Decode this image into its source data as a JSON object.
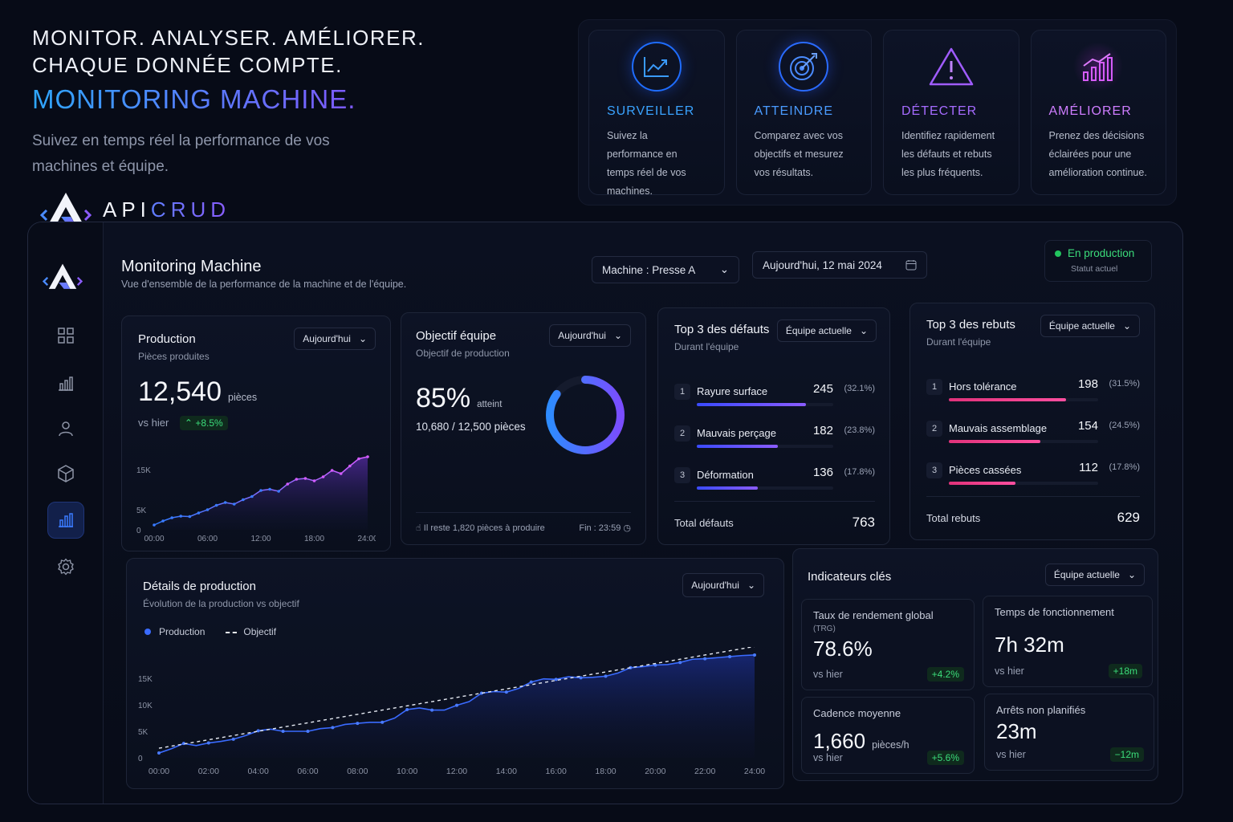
{
  "hero": {
    "line1": "MONITOR. ANALYSER. AMÉLIORER.",
    "line2": "CHAQUE DONNÉE COMPTE.",
    "accent": "MONITORING MACHINE.",
    "subtitle": "Suivez en temps réel la performance de vos machines et équipe.",
    "brand_a": "APICRUD",
    "brand_prefix": "API",
    "brand_suffix": "CRUD"
  },
  "features": [
    {
      "title": "SURVEILLER",
      "desc": "Suivez la performance en temps réel de vos machines.",
      "icon": "trend-chart-icon",
      "color": "#2e8bff"
    },
    {
      "title": "ATTEINDRE",
      "desc": "Comparez avec vos objectifs et mesurez vos résultats.",
      "icon": "target-icon",
      "color": "#3a7bff"
    },
    {
      "title": "DÉTECTER",
      "desc": "Identifiez rapidement les défauts et rebuts les plus fréquents.",
      "icon": "warning-icon",
      "color": "#9b5cff"
    },
    {
      "title": "AMÉLIORER",
      "desc": "Prenez des décisions éclairées pour une amélioration continue.",
      "icon": "growth-chart-icon",
      "color": "#c44dff"
    }
  ],
  "dashboard": {
    "title": "Monitoring Machine",
    "subtitle": "Vue d'ensemble de la performance de la machine et de l'équipe.",
    "machine_select": "Machine : Presse A",
    "date_select": "Aujourd'hui, 12 mai 2024",
    "status": {
      "label": "En production",
      "sub": "Statut actuel"
    },
    "sidebar_icons": [
      "grid-icon",
      "bar-chart-icon",
      "user-icon",
      "cube-icon",
      "analytics-icon",
      "settings-icon"
    ]
  },
  "production": {
    "title": "Production",
    "subtitle": "Pièces produites",
    "period": "Aujourd'hui",
    "value": "12,540",
    "unit": "pièces",
    "compare_label": "vs hier",
    "delta": "+8.5%"
  },
  "objective": {
    "title": "Objectif équipe",
    "subtitle": "Objectif de production",
    "period": "Aujourd'hui",
    "value": "85%",
    "value_label": "atteint",
    "detail": "10,680 / 12,500 pièces",
    "progress": 0.85,
    "remaining": "Il reste 1,820 pièces à produire",
    "end": "Fin : 23:59"
  },
  "defects": {
    "title": "Top 3 des défauts",
    "subtitle": "Durant l'équipe",
    "filter": "Équipe actuelle",
    "items": [
      {
        "rank": "1",
        "label": "Rayure surface",
        "value": "245",
        "pct": "(32.1%)",
        "share": 0.321
      },
      {
        "rank": "2",
        "label": "Mauvais perçage",
        "value": "182",
        "pct": "(23.8%)",
        "share": 0.238
      },
      {
        "rank": "3",
        "label": "Déformation",
        "value": "136",
        "pct": "(17.8%)",
        "share": 0.178
      }
    ],
    "total_label": "Total défauts",
    "total": "763"
  },
  "scrap": {
    "title": "Top 3 des rebuts",
    "subtitle": "Durant l'équipe",
    "filter": "Équipe actuelle",
    "items": [
      {
        "rank": "1",
        "label": "Hors tolérance",
        "value": "198",
        "pct": "(31.5%)",
        "share": 0.315
      },
      {
        "rank": "2",
        "label": "Mauvais assemblage",
        "value": "154",
        "pct": "(24.5%)",
        "share": 0.245
      },
      {
        "rank": "3",
        "label": "Pièces cassées",
        "value": "112",
        "pct": "(17.8%)",
        "share": 0.178
      }
    ],
    "total_label": "Total rebuts",
    "total": "629"
  },
  "details": {
    "title": "Détails de production",
    "subtitle": "Évolution de la production vs objectif",
    "period": "Aujourd'hui",
    "legend_production": "Production",
    "legend_objective": "Objectif"
  },
  "kpis": {
    "title": "Indicateurs clés",
    "filter": "Équipe actuelle",
    "items": [
      {
        "label": "Taux de rendement global",
        "label2": "(TRG)",
        "value": "78.6%",
        "unit": "",
        "compare": "vs hier",
        "delta": "+4.2%"
      },
      {
        "label": "Temps de fonctionnement",
        "label2": "",
        "value": "7h 32m",
        "unit": "",
        "compare": "vs hier",
        "delta": "+18m"
      },
      {
        "label": "Cadence moyenne",
        "label2": "",
        "value": "1,660",
        "unit": "pièces/h",
        "compare": "vs hier",
        "delta": "+5.6%"
      },
      {
        "label": "Arrêts non planifiés",
        "label2": "",
        "value": "23m",
        "unit": "",
        "compare": "vs hier",
        "delta": "−12m"
      }
    ]
  },
  "chart_data": [
    {
      "type": "area",
      "title": "Production",
      "x": [
        "00:00",
        "01:00",
        "02:00",
        "03:00",
        "04:00",
        "05:00",
        "06:00",
        "07:00",
        "08:00",
        "09:00",
        "10:00",
        "11:00",
        "12:00",
        "13:00",
        "14:00",
        "15:00",
        "16:00",
        "17:00",
        "18:00",
        "19:00",
        "20:00",
        "21:00",
        "22:00",
        "23:00",
        "24:00"
      ],
      "x_ticks": [
        "00:00",
        "06:00",
        "12:00",
        "18:00",
        "24:00"
      ],
      "y_ticks": [
        "0",
        "5K",
        "15K"
      ],
      "series": [
        {
          "values": [
            1200,
            2200,
            3000,
            3400,
            3300,
            4200,
            5000,
            6100,
            6800,
            6400,
            7500,
            8300,
            9800,
            10100,
            9600,
            11400,
            12600,
            12800,
            12200,
            13200,
            14800,
            14000,
            15900,
            17700,
            18200
          ]
        }
      ],
      "ylim": [
        0,
        20000
      ]
    },
    {
      "type": "line",
      "title": "Détails de production",
      "x_ticks": [
        "00:00",
        "02:00",
        "04:00",
        "06:00",
        "08:00",
        "10:00",
        "12:00",
        "14:00",
        "16:00",
        "18:00",
        "20:00",
        "22:00",
        "24:00"
      ],
      "y_ticks": [
        "0",
        "5K",
        "10K",
        "15K"
      ],
      "x": [
        0,
        0.5,
        1,
        1.5,
        2,
        2.5,
        3,
        3.5,
        4,
        4.5,
        5,
        5.5,
        6,
        6.5,
        7,
        7.5,
        8,
        8.5,
        9,
        9.5,
        10,
        10.5,
        11,
        11.5,
        12,
        12.5,
        13,
        13.5,
        14,
        14.5,
        15,
        15.5,
        16,
        16.5,
        17,
        17.5,
        18,
        18.5,
        19,
        19.5,
        20,
        20.5,
        21,
        21.5,
        22,
        22.5,
        23,
        23.5,
        24
      ],
      "series": [
        {
          "name": "Production",
          "values": [
            900,
            1700,
            2700,
            2300,
            2800,
            3100,
            3500,
            4200,
            5100,
            5400,
            5000,
            5000,
            5000,
            5500,
            5700,
            6300,
            6500,
            6700,
            6700,
            7500,
            9100,
            9400,
            9000,
            9000,
            9900,
            10600,
            12200,
            12500,
            12400,
            13100,
            14300,
            14900,
            14800,
            15300,
            15100,
            15200,
            15400,
            16000,
            17000,
            17200,
            17500,
            17600,
            18000,
            18600,
            18700,
            18900,
            19100,
            19300,
            19400
          ]
        },
        {
          "name": "Objectif",
          "values": [
            1800,
            2200,
            2600,
            3000,
            3400,
            3800,
            4200,
            4600,
            5000,
            5400,
            5800,
            6200,
            6600,
            7000,
            7400,
            7800,
            8200,
            8600,
            9000,
            9400,
            9800,
            10200,
            10600,
            11000,
            11400,
            11800,
            12200,
            12600,
            13000,
            13400,
            13800,
            14200,
            14600,
            15000,
            15400,
            15800,
            16200,
            16600,
            17000,
            17400,
            17800,
            18200,
            18600,
            19000,
            19400,
            19800,
            20200,
            20600,
            21000
          ]
        }
      ],
      "ylim": [
        0,
        20000
      ]
    }
  ]
}
